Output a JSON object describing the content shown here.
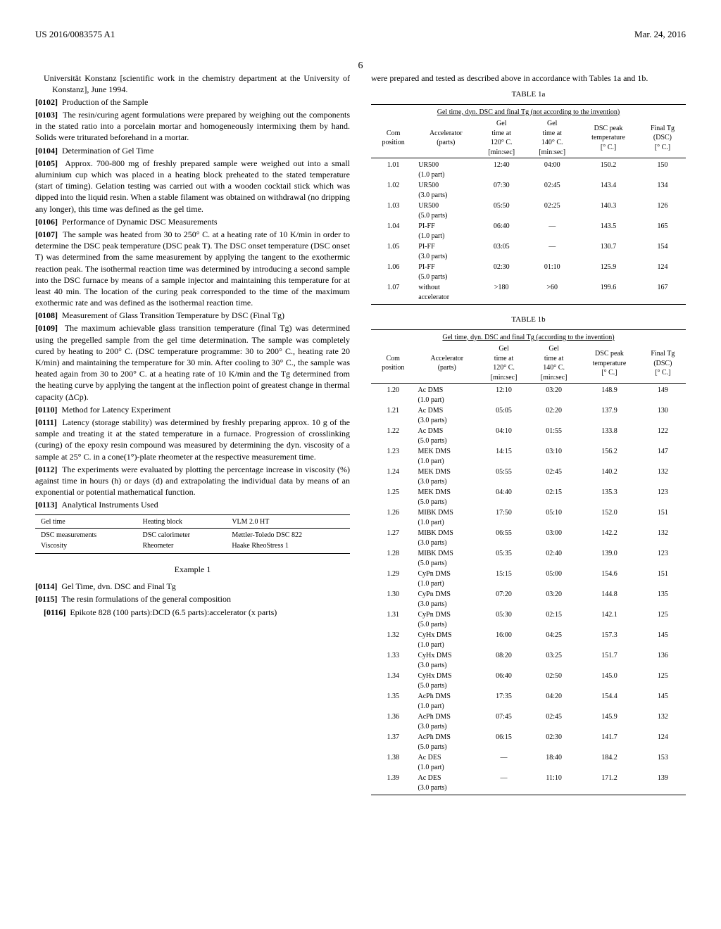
{
  "header": {
    "pub_number": "US 2016/0083575 A1",
    "pub_date": "Mar. 24, 2016",
    "page_number": "6"
  },
  "left_col": {
    "intro_frag": "Universität Konstanz [scientific work in the chemistry department at the University of Konstanz], June 1994.",
    "p0102_ref": "[0102]",
    "p0102": "Production of the Sample",
    "p0103_ref": "[0103]",
    "p0103": "The resin/curing agent formulations were prepared by weighing out the components in the stated ratio into a porcelain mortar and homogeneously intermixing them by hand. Solids were triturated beforehand in a mortar.",
    "p0104_ref": "[0104]",
    "p0104": "Determination of Gel Time",
    "p0105_ref": "[0105]",
    "p0105": "Approx. 700-800 mg of freshly prepared sample were weighed out into a small aluminium cup which was placed in a heating block preheated to the stated temperature (start of timing). Gelation testing was carried out with a wooden cocktail stick which was dipped into the liquid resin. When a stable filament was obtained on withdrawal (no dripping any longer), this time was defined as the gel time.",
    "p0106_ref": "[0106]",
    "p0106": "Performance of Dynamic DSC Measurements",
    "p0107_ref": "[0107]",
    "p0107": "The sample was heated from 30 to 250° C. at a heating rate of 10 K/min in order to determine the DSC peak temperature (DSC peak T). The DSC onset temperature (DSC onset T) was determined from the same measurement by applying the tangent to the exothermic reaction peak. The isothermal reaction time was determined by introducing a second sample into the DSC furnace by means of a sample injector and maintaining this temperature for at least 40 min. The location of the curing peak corresponded to the time of the maximum exothermic rate and was defined as the isothermal reaction time.",
    "p0108_ref": "[0108]",
    "p0108": "Measurement of Glass Transition Temperature by DSC (Final Tg)",
    "p0109_ref": "[0109]",
    "p0109": "The maximum achievable glass transition temperature (final Tg) was determined using the pregelled sample from the gel time determination. The sample was completely cured by heating to 200° C. (DSC temperature programme: 30 to 200° C., heating rate 20 K/min) and maintaining the temperature for 30 min. After cooling to 30° C., the sample was heated again from 30 to 200° C. at a heating rate of 10 K/min and the Tg determined from the heating curve by applying the tangent at the inflection point of greatest change in thermal capacity (ΔCp).",
    "p0110_ref": "[0110]",
    "p0110": "Method for Latency Experiment",
    "p0111_ref": "[0111]",
    "p0111": "Latency (storage stability) was determined by freshly preparing approx. 10 g of the sample and treating it at the stated temperature in a furnace. Progression of crosslinking (curing) of the epoxy resin compound was measured by determining the dyn. viscosity of a sample at 25° C. in a cone(1°)-plate rheometer at the respective measurement time.",
    "p0112_ref": "[0112]",
    "p0112": "The experiments were evaluated by plotting the percentage increase in viscosity (%) against time in hours (h) or days (d) and extrapolating the individual data by means of an exponential or potential mathematical function.",
    "p0113_ref": "[0113]",
    "p0113": "Analytical Instruments Used",
    "instruments": {
      "rows": [
        [
          "Gel time",
          "Heating block",
          "VLM 2.0 HT"
        ],
        [
          "DSC measurements",
          "DSC calorimeter",
          "Mettler-Toledo DSC 822"
        ],
        [
          "Viscosity",
          "Rheometer",
          "Haake RheoStress 1"
        ]
      ]
    },
    "example_label": "Example 1",
    "p0114_ref": "[0114]",
    "p0114": "Gel Time, dvn. DSC and Final Tg",
    "p0115_ref": "[0115]",
    "p0115": "The resin formulations of the general composition",
    "p0116_ref": "[0116]",
    "p0116": "Epikote 828 (100 parts):DCD (6.5 parts):accelerator (x parts)"
  },
  "right_col": {
    "intro": "were prepared and tested as described above in accordance with Tables 1a and 1b.",
    "table1a": {
      "title": "TABLE 1a",
      "subtitle": "Gel time, dyn. DSC and final Tg (not according to the invention)",
      "headers": [
        "Com\nposition",
        "Accelerator\n(parts)",
        "Gel\ntime at\n120° C.\n[min:sec]",
        "Gel\ntime at\n140° C.\n[min:sec]",
        "DSC peak\ntemperature\n[° C.]",
        "Final Tg\n(DSC)\n[° C.]"
      ],
      "rows": [
        [
          "1.01",
          "UR500\n(1.0 part)",
          "12:40",
          "04:00",
          "150.2",
          "150"
        ],
        [
          "1.02",
          "UR500\n(3.0 parts)",
          "07:30",
          "02:45",
          "143.4",
          "134"
        ],
        [
          "1.03",
          "UR500\n(5.0 parts)",
          "05:50",
          "02:25",
          "140.3",
          "126"
        ],
        [
          "1.04",
          "PI-FF\n(1.0 part)",
          "06:40",
          "—",
          "143.5",
          "165"
        ],
        [
          "1.05",
          "PI-FF\n(3.0 parts)",
          "03:05",
          "—",
          "130.7",
          "154"
        ],
        [
          "1.06",
          "PI-FF\n(5.0 parts)",
          "02:30",
          "01:10",
          "125.9",
          "124"
        ],
        [
          "1.07",
          "without\naccelerator",
          ">180",
          ">60",
          "199.6",
          "167"
        ]
      ]
    },
    "table1b": {
      "title": "TABLE 1b",
      "subtitle": "Gel time, dyn. DSC and final Tg (according to the invention)",
      "headers": [
        "Com\nposition",
        "Accelerator\n(parts)",
        "Gel\ntime at\n120° C.\n[min:sec]",
        "Gel\ntime at\n140° C.\n[min:sec]",
        "DSC peak\ntemperature\n[° C.]",
        "Final Tg\n(DSC)\n[° C.]"
      ],
      "rows": [
        [
          "1.20",
          "Ac DMS\n(1.0 part)",
          "12:10",
          "03:20",
          "148.9",
          "149"
        ],
        [
          "1.21",
          "Ac DMS\n(3.0 parts)",
          "05:05",
          "02:20",
          "137.9",
          "130"
        ],
        [
          "1.22",
          "Ac DMS\n(5.0 parts)",
          "04:10",
          "01:55",
          "133.8",
          "122"
        ],
        [
          "1.23",
          "MEK DMS\n(1.0 part)",
          "14:15",
          "03:10",
          "156.2",
          "147"
        ],
        [
          "1.24",
          "MEK DMS\n(3.0 parts)",
          "05:55",
          "02:45",
          "140.2",
          "132"
        ],
        [
          "1.25",
          "MEK DMS\n(5.0 parts)",
          "04:40",
          "02:15",
          "135.3",
          "123"
        ],
        [
          "1.26",
          "MIBK DMS\n(1.0 part)",
          "17:50",
          "05:10",
          "152.0",
          "151"
        ],
        [
          "1.27",
          "MIBK DMS\n(3.0 parts)",
          "06:55",
          "03:00",
          "142.2",
          "132"
        ],
        [
          "1.28",
          "MIBK DMS\n(5.0 parts)",
          "05:35",
          "02:40",
          "139.0",
          "123"
        ],
        [
          "1.29",
          "CyPn DMS\n(1.0 part)",
          "15:15",
          "05:00",
          "154.6",
          "151"
        ],
        [
          "1.30",
          "CyPn DMS\n(3.0 parts)",
          "07:20",
          "03:20",
          "144.8",
          "135"
        ],
        [
          "1.31",
          "CyPn DMS\n(5.0 parts)",
          "05:30",
          "02:15",
          "142.1",
          "125"
        ],
        [
          "1.32",
          "CyHx DMS\n(1.0 part)",
          "16:00",
          "04:25",
          "157.3",
          "145"
        ],
        [
          "1.33",
          "CyHx DMS\n(3.0 parts)",
          "08:20",
          "03:25",
          "151.7",
          "136"
        ],
        [
          "1.34",
          "CyHx DMS\n(5.0 parts)",
          "06:40",
          "02:50",
          "145.0",
          "125"
        ],
        [
          "1.35",
          "AcPh DMS\n(1.0 part)",
          "17:35",
          "04:20",
          "154.4",
          "145"
        ],
        [
          "1.36",
          "AcPh DMS\n(3.0 parts)",
          "07:45",
          "02:45",
          "145.9",
          "132"
        ],
        [
          "1.37",
          "AcPh DMS\n(5.0 parts)",
          "06:15",
          "02:30",
          "141.7",
          "124"
        ],
        [
          "1.38",
          "Ac DES\n(1.0 part)",
          "—",
          "18:40",
          "184.2",
          "153"
        ],
        [
          "1.39",
          "Ac DES\n(3.0 parts)",
          "—",
          "11:10",
          "171.2",
          "139"
        ]
      ]
    }
  }
}
